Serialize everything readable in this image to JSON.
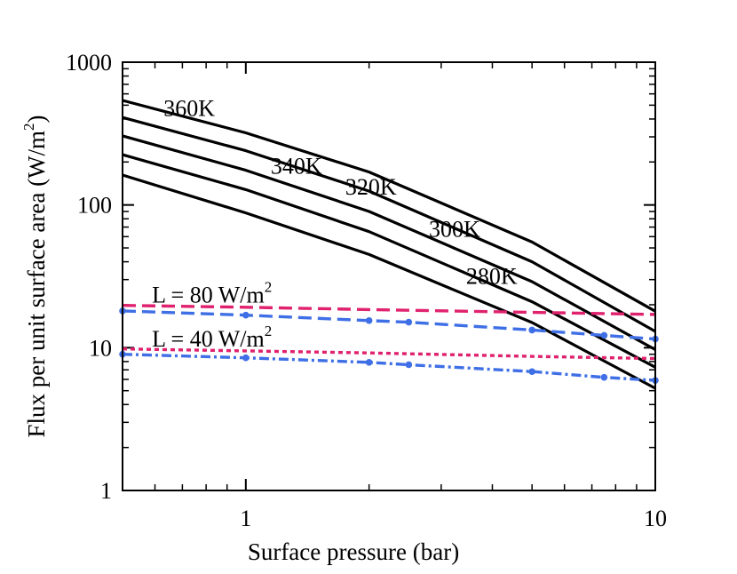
{
  "chart_data": {
    "type": "line",
    "title": "",
    "xlabel": "Surface pressure (bar)",
    "ylabel_main": "Flux per unit surface area (W/m",
    "ylabel_sup": "2",
    "ylabel_close": ")",
    "xscale": "log",
    "yscale": "log",
    "xlim": [
      0.5,
      10
    ],
    "ylim": [
      1,
      1000
    ],
    "x_ticks": [
      {
        "value": 1,
        "label": "1"
      },
      {
        "value": 10,
        "label": "10"
      }
    ],
    "y_ticks": [
      {
        "value": 1,
        "label": "1"
      },
      {
        "value": 10,
        "label": "10"
      },
      {
        "value": 100,
        "label": "100"
      },
      {
        "value": 1000,
        "label": "1000"
      }
    ],
    "grid": false,
    "series": [
      {
        "name": "360K",
        "color": "#000000",
        "style": "solid",
        "points": [
          [
            0.5,
            540
          ],
          [
            1,
            320
          ],
          [
            2,
            170
          ],
          [
            5,
            55
          ],
          [
            10,
            18
          ]
        ]
      },
      {
        "name": "340K",
        "color": "#000000",
        "style": "solid",
        "points": [
          [
            0.5,
            410
          ],
          [
            1,
            240
          ],
          [
            2,
            125
          ],
          [
            5,
            40
          ],
          [
            10,
            13
          ]
        ]
      },
      {
        "name": "320K",
        "color": "#000000",
        "style": "solid",
        "points": [
          [
            0.5,
            305
          ],
          [
            1,
            175
          ],
          [
            2,
            90
          ],
          [
            5,
            29
          ],
          [
            10,
            9.7
          ]
        ]
      },
      {
        "name": "300K",
        "color": "#000000",
        "style": "solid",
        "points": [
          [
            0.5,
            225
          ],
          [
            1,
            128
          ],
          [
            2,
            65
          ],
          [
            5,
            21
          ],
          [
            10,
            7.3
          ]
        ]
      },
      {
        "name": "280K",
        "color": "#000000",
        "style": "solid",
        "points": [
          [
            0.5,
            162
          ],
          [
            1,
            88
          ],
          [
            2,
            45
          ],
          [
            5,
            15
          ],
          [
            10,
            5.2
          ]
        ]
      },
      {
        "name": "L = 80 W/m2",
        "color": "#e0226e",
        "style": "dashed",
        "points": [
          [
            0.5,
            19.8
          ],
          [
            1,
            19.2
          ],
          [
            2,
            18.5
          ],
          [
            5,
            17.7
          ],
          [
            10,
            17.1
          ]
        ]
      },
      {
        "name": "",
        "color": "#3f6fe6",
        "style": "dashed",
        "markers": true,
        "points": [
          [
            0.5,
            18.1
          ],
          [
            1,
            16.9
          ],
          [
            2,
            15.5
          ],
          [
            2.5,
            15.1
          ],
          [
            5,
            13.3
          ],
          [
            7.5,
            12.2
          ],
          [
            10,
            11.5
          ]
        ]
      },
      {
        "name": "L = 40 W/m2",
        "color": "#e0226e",
        "style": "dotted",
        "points": [
          [
            0.5,
            9.8
          ],
          [
            1,
            9.5
          ],
          [
            2,
            9.2
          ],
          [
            5,
            8.7
          ],
          [
            10,
            8.4
          ]
        ]
      },
      {
        "name": "",
        "color": "#3f6fe6",
        "style": "dashdot",
        "markers": true,
        "points": [
          [
            0.5,
            9.0
          ],
          [
            1,
            8.5
          ],
          [
            2,
            7.9
          ],
          [
            2.5,
            7.6
          ],
          [
            5,
            6.8
          ],
          [
            7.5,
            6.2
          ],
          [
            10,
            5.9
          ]
        ]
      }
    ],
    "annotations": [
      {
        "text": "360K",
        "at": [
          0.63,
          420
        ]
      },
      {
        "text": "340K",
        "at": [
          1.15,
          165
        ]
      },
      {
        "text": "320K",
        "at": [
          1.75,
          118
        ]
      },
      {
        "text": "300K",
        "at": [
          2.8,
          60
        ]
      },
      {
        "text": "280K",
        "at": [
          3.45,
          28
        ]
      },
      {
        "text": "L = 80 W/m",
        "sup": "2",
        "at": [
          0.59,
          20.7
        ]
      },
      {
        "text": "L = 40 W/m",
        "sup": "2",
        "at": [
          0.59,
          10.2
        ]
      }
    ]
  }
}
